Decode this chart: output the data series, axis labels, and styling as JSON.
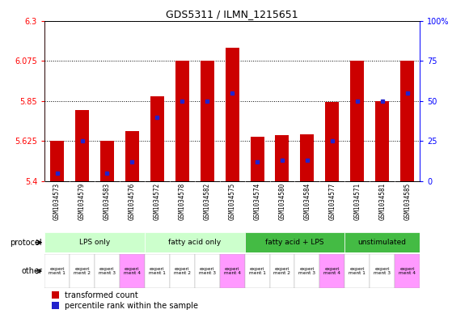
{
  "title": "GDS5311 / ILMN_1215651",
  "samples": [
    "GSM1034573",
    "GSM1034579",
    "GSM1034583",
    "GSM1034576",
    "GSM1034572",
    "GSM1034578",
    "GSM1034582",
    "GSM1034575",
    "GSM1034574",
    "GSM1034580",
    "GSM1034584",
    "GSM1034577",
    "GSM1034571",
    "GSM1034581",
    "GSM1034585"
  ],
  "transformed_count": [
    5.625,
    5.8,
    5.625,
    5.68,
    5.875,
    6.075,
    6.075,
    6.15,
    5.65,
    5.66,
    5.665,
    5.845,
    6.075,
    5.85,
    6.075
  ],
  "percentile_rank": [
    5,
    25,
    5,
    12,
    40,
    50,
    50,
    55,
    12,
    13,
    13,
    25,
    50,
    50,
    55
  ],
  "ymin": 5.4,
  "ymax": 6.3,
  "yticks": [
    5.4,
    5.625,
    5.85,
    6.075,
    6.3
  ],
  "ytick_labels": [
    "5.4",
    "5.625",
    "5.85",
    "6.075",
    "6.3"
  ],
  "right_yticks": [
    0,
    25,
    50,
    75,
    100
  ],
  "right_ytick_labels": [
    "0",
    "25",
    "50",
    "75",
    "100%"
  ],
  "bar_color": "#cc0000",
  "blue_color": "#2222cc",
  "protocol_groups": [
    {
      "label": "LPS only",
      "start": 0,
      "end": 4,
      "color": "#ccffcc"
    },
    {
      "label": "fatty acid only",
      "start": 4,
      "end": 8,
      "color": "#ccffcc"
    },
    {
      "label": "fatty acid + LPS",
      "start": 8,
      "end": 12,
      "color": "#44bb44"
    },
    {
      "label": "unstimulated",
      "start": 12,
      "end": 15,
      "color": "#44bb44"
    }
  ],
  "other_labels": [
    "experi\nment 1",
    "experi\nment 2",
    "experi\nment 3",
    "experi\nment 4",
    "experi\nment 1",
    "experi\nment 2",
    "experi\nment 3",
    "experi\nment 4",
    "experi\nment 1",
    "experi\nment 2",
    "experi\nment 3",
    "experi\nment 4",
    "experi\nment 1",
    "experi\nment 3",
    "experi\nment 4"
  ],
  "other_colors": [
    "#ffffff",
    "#ffffff",
    "#ffffff",
    "#ff99ff",
    "#ffffff",
    "#ffffff",
    "#ffffff",
    "#ff99ff",
    "#ffffff",
    "#ffffff",
    "#ffffff",
    "#ff99ff",
    "#ffffff",
    "#ffffff",
    "#ff99ff"
  ],
  "legend_red": "transformed count",
  "legend_blue": "percentile rank within the sample",
  "sample_bg": "#d0d0d0",
  "gridline_color": "#000000"
}
